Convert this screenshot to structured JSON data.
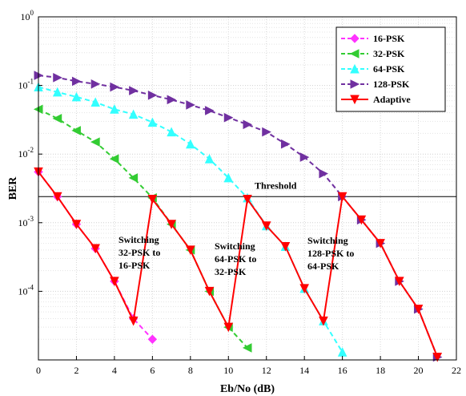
{
  "chart_data": {
    "type": "line",
    "title": "",
    "xlabel": "Eb/No (dB)",
    "ylabel": "BER",
    "xlim": [
      0,
      22
    ],
    "x_ticks": [
      0,
      2,
      4,
      6,
      8,
      10,
      12,
      14,
      16,
      18,
      20,
      22
    ],
    "ylim": [
      1e-05,
      1
    ],
    "y_scale": "log",
    "y_tick_labels": [
      {
        "value": 1,
        "mant": "10",
        "exp": "0"
      },
      {
        "value": 0.1,
        "mant": "10",
        "exp": "-1"
      },
      {
        "value": 0.01,
        "mant": "10",
        "exp": "-2"
      },
      {
        "value": 0.001,
        "mant": "10",
        "exp": "-3"
      },
      {
        "value": 0.0001,
        "mant": "10",
        "exp": "-4"
      }
    ],
    "grid": true,
    "legend_position": "top-right",
    "threshold": {
      "value": 0.0024,
      "label": "Threshold"
    },
    "series": [
      {
        "name": "16-PSK",
        "color": "#ff33ff",
        "dash": "dashed",
        "marker": "diamond",
        "x": [
          0,
          1,
          2,
          3,
          4,
          5,
          6
        ],
        "y": [
          0.0055,
          0.0024,
          0.00095,
          0.00042,
          0.00014,
          4e-05,
          2e-05
        ]
      },
      {
        "name": "32-PSK",
        "color": "#33cc33",
        "dash": "dashed",
        "marker": "triangle-left",
        "x": [
          0,
          1,
          2,
          3,
          4,
          5,
          6,
          7,
          8,
          9,
          10,
          11
        ],
        "y": [
          0.045,
          0.033,
          0.022,
          0.015,
          0.0085,
          0.0045,
          0.0023,
          0.00095,
          0.0004,
          0.0001,
          3e-05,
          1.5e-05
        ]
      },
      {
        "name": "64-PSK",
        "color": "#33ffff",
        "dash": "dashed",
        "marker": "triangle-up",
        "x": [
          0,
          1,
          2,
          3,
          4,
          5,
          6,
          7,
          8,
          9,
          10,
          11,
          12,
          13,
          14,
          15,
          16
        ],
        "y": [
          0.095,
          0.08,
          0.068,
          0.057,
          0.045,
          0.038,
          0.029,
          0.021,
          0.014,
          0.0085,
          0.0045,
          0.0023,
          0.0009,
          0.00045,
          0.00011,
          3.7e-05,
          1.3e-05
        ]
      },
      {
        "name": "128-PSK",
        "color": "#7030a0",
        "dash": "dashed",
        "marker": "triangle-right",
        "x": [
          0,
          1,
          2,
          3,
          4,
          5,
          6,
          7,
          8,
          9,
          10,
          11,
          12,
          13,
          14,
          15,
          16,
          17,
          18,
          19,
          20,
          21
        ],
        "y": [
          0.14,
          0.13,
          0.115,
          0.105,
          0.095,
          0.084,
          0.072,
          0.062,
          0.052,
          0.043,
          0.034,
          0.027,
          0.021,
          0.014,
          0.009,
          0.0052,
          0.0024,
          0.0011,
          0.0005,
          0.00014,
          5.5e-05,
          1.1e-05
        ]
      },
      {
        "name": "Adaptive",
        "color": "#ff0000",
        "dash": "solid",
        "marker": "triangle-down",
        "x": [
          0,
          1,
          2,
          3,
          4,
          5,
          6,
          7,
          8,
          9,
          10,
          11,
          12,
          13,
          14,
          15,
          16,
          17,
          18,
          19,
          20,
          21
        ],
        "y": [
          0.0055,
          0.0024,
          0.00095,
          0.00042,
          0.00014,
          3.7e-05,
          0.0022,
          0.00095,
          0.0004,
          0.0001,
          3e-05,
          0.0022,
          0.0009,
          0.00045,
          0.00011,
          3.7e-05,
          0.0024,
          0.0011,
          0.0005,
          0.00014,
          5.5e-05,
          1.1e-05
        ]
      }
    ],
    "annotations": [
      {
        "lines": [
          "Switching",
          "32-PSK to",
          "16-PSK"
        ]
      },
      {
        "lines": [
          "Switching",
          "64-PSK to",
          "32-PSK"
        ]
      },
      {
        "lines": [
          "Switching",
          "128-PSK to",
          "64-PSK"
        ]
      }
    ]
  }
}
